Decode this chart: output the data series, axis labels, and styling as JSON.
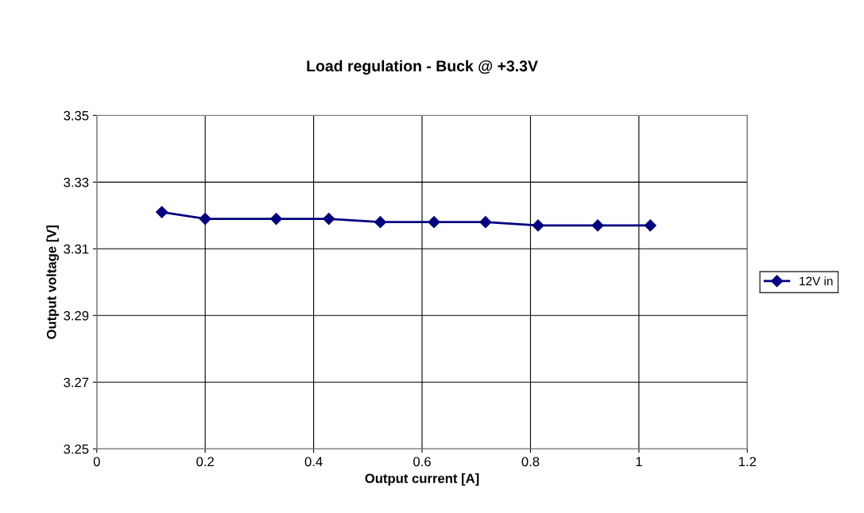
{
  "chart_data": {
    "type": "line",
    "title": "Load regulation - Buck @ +3.3V",
    "xlabel": "Output current [A]",
    "ylabel": "Output voltage [V]",
    "x": [
      0.12,
      0.2,
      0.331,
      0.428,
      0.523,
      0.622,
      0.717,
      0.814,
      0.924,
      1.021
    ],
    "series": [
      {
        "name": "12V in",
        "color": "#000080",
        "values": [
          3.321,
          3.319,
          3.319,
          3.319,
          3.318,
          3.318,
          3.318,
          3.317,
          3.317,
          3.317
        ]
      }
    ],
    "xlim": [
      0,
      1.2
    ],
    "xticks": [
      0,
      0.2,
      0.4,
      0.6,
      0.8,
      1,
      1.2
    ],
    "ylim": [
      3.25,
      3.35
    ],
    "yticks": [
      {
        "value": 3.25,
        "label": "3.25"
      },
      {
        "value": 3.27,
        "label": "3.27"
      },
      {
        "value": 3.29,
        "label": "3.29"
      },
      {
        "value": 3.31,
        "label": "3.31"
      },
      {
        "value": 3.33,
        "label": "3.33"
      },
      {
        "value": 3.35,
        "label": "3.35"
      }
    ],
    "grid": true,
    "legend": "right",
    "marker": "diamond",
    "line_style": "solid"
  }
}
